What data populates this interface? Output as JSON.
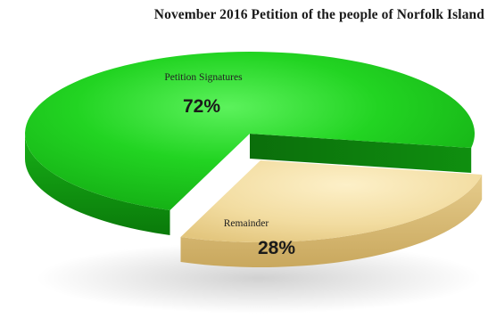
{
  "chart_data": {
    "type": "pie",
    "title": "November 2016 Petition of the people of Norfolk Island",
    "slices": [
      {
        "label": "Petition Signatures",
        "value": 72,
        "display": "72%",
        "color": "#19c219"
      },
      {
        "label": "Remainder",
        "value": 28,
        "display": "28%",
        "color": "#f3dea1"
      }
    ],
    "style": "3d-exploded"
  }
}
